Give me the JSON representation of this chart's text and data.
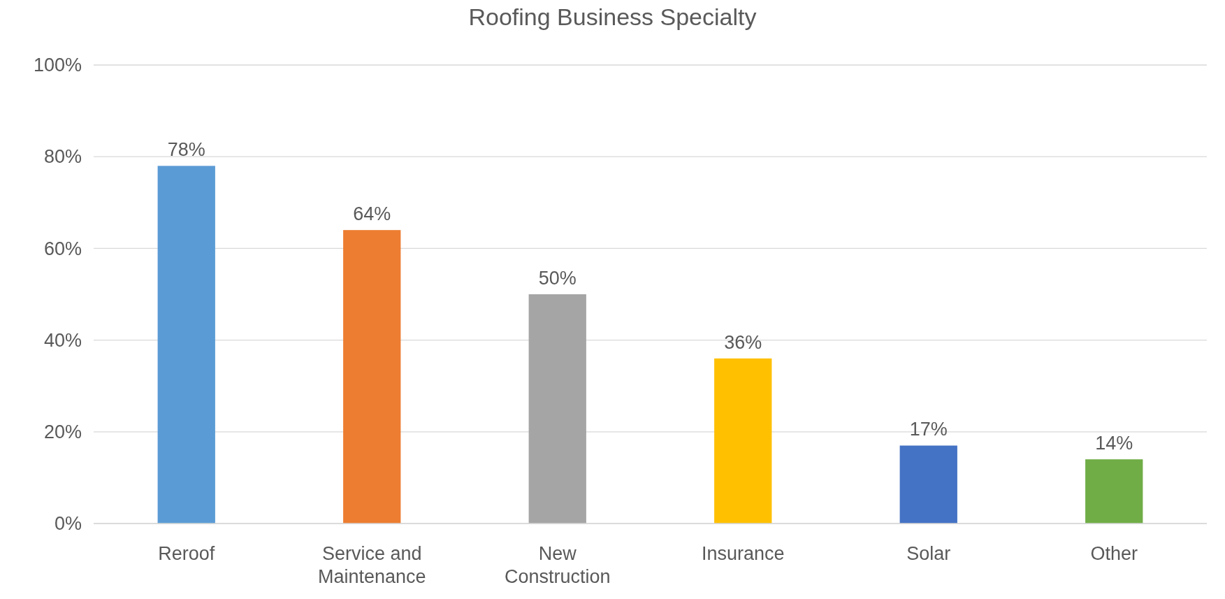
{
  "chart_data": {
    "type": "bar",
    "title": "Roofing Business Specialty",
    "categories": [
      "Reroof",
      "Service and Maintenance",
      "New Construction",
      "Insurance",
      "Solar",
      "Other"
    ],
    "values": [
      78,
      64,
      50,
      36,
      17,
      14
    ],
    "colors": [
      "#5b9bd5",
      "#ed7d31",
      "#a5a5a5",
      "#ffc000",
      "#4472c4",
      "#70ad47"
    ],
    "value_labels": [
      "78%",
      "64%",
      "50%",
      "36%",
      "17%",
      "14%"
    ],
    "ylim": [
      0,
      100
    ],
    "yticks": [
      {
        "value": 0,
        "label": "0%"
      },
      {
        "value": 20,
        "label": "20%"
      },
      {
        "value": 40,
        "label": "40%"
      },
      {
        "value": 60,
        "label": "60%"
      },
      {
        "value": 80,
        "label": "80%"
      },
      {
        "value": 100,
        "label": "100%"
      }
    ],
    "grid": "y"
  }
}
